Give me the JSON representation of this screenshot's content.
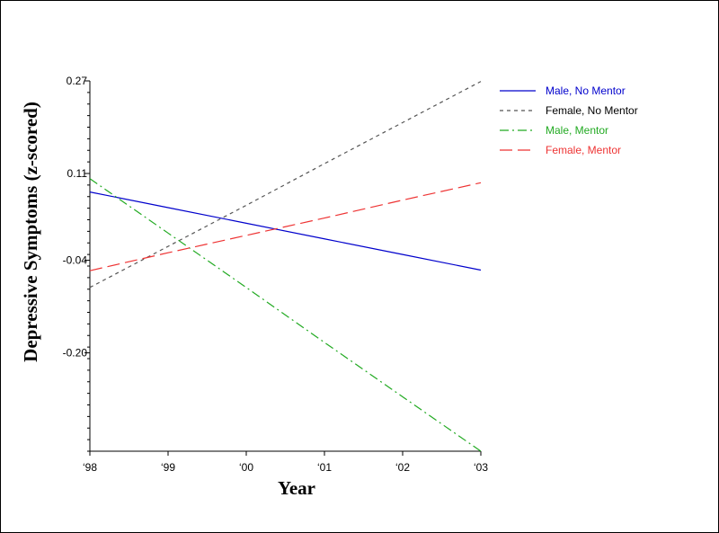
{
  "chart_data": {
    "type": "line",
    "title": "",
    "xlabel": "Year",
    "ylabel": "Depressive Symptoms  (z-scored)",
    "categories": [
      "'98",
      "'99",
      "'00",
      "'01",
      "'02",
      "'03"
    ],
    "x_tick_labels": [
      "‘98",
      "‘99",
      "‘00",
      "‘01",
      "‘02",
      "‘03"
    ],
    "ylim": [
      -0.37,
      0.27
    ],
    "y_ticks": [
      0.27,
      0.11,
      -0.04,
      -0.2
    ],
    "y_tick_labels": [
      "0.27",
      "0.11",
      "-0.04",
      "-0.20"
    ],
    "grid": false,
    "legend_position": "top-right",
    "series": [
      {
        "name": "Male, No Mentor",
        "color": "#0000cc",
        "dash": "solid",
        "values": [
          0.078,
          0.051,
          0.024,
          -0.003,
          -0.03,
          -0.057
        ]
      },
      {
        "name": "Female, No Mentor",
        "color": "#555555",
        "dash": "dashed",
        "values": [
          -0.087,
          -0.016,
          0.055,
          0.127,
          0.198,
          0.269
        ]
      },
      {
        "name": "Male, Mentor",
        "color": "#22aa22",
        "dash": "dashdot",
        "values": [
          0.101,
          0.007,
          -0.087,
          -0.182,
          -0.276,
          -0.37
        ]
      },
      {
        "name": "Female, Mentor",
        "color": "#ee3333",
        "dash": "longdash",
        "values": [
          -0.058,
          -0.027,
          0.003,
          0.033,
          0.064,
          0.094
        ]
      }
    ]
  }
}
